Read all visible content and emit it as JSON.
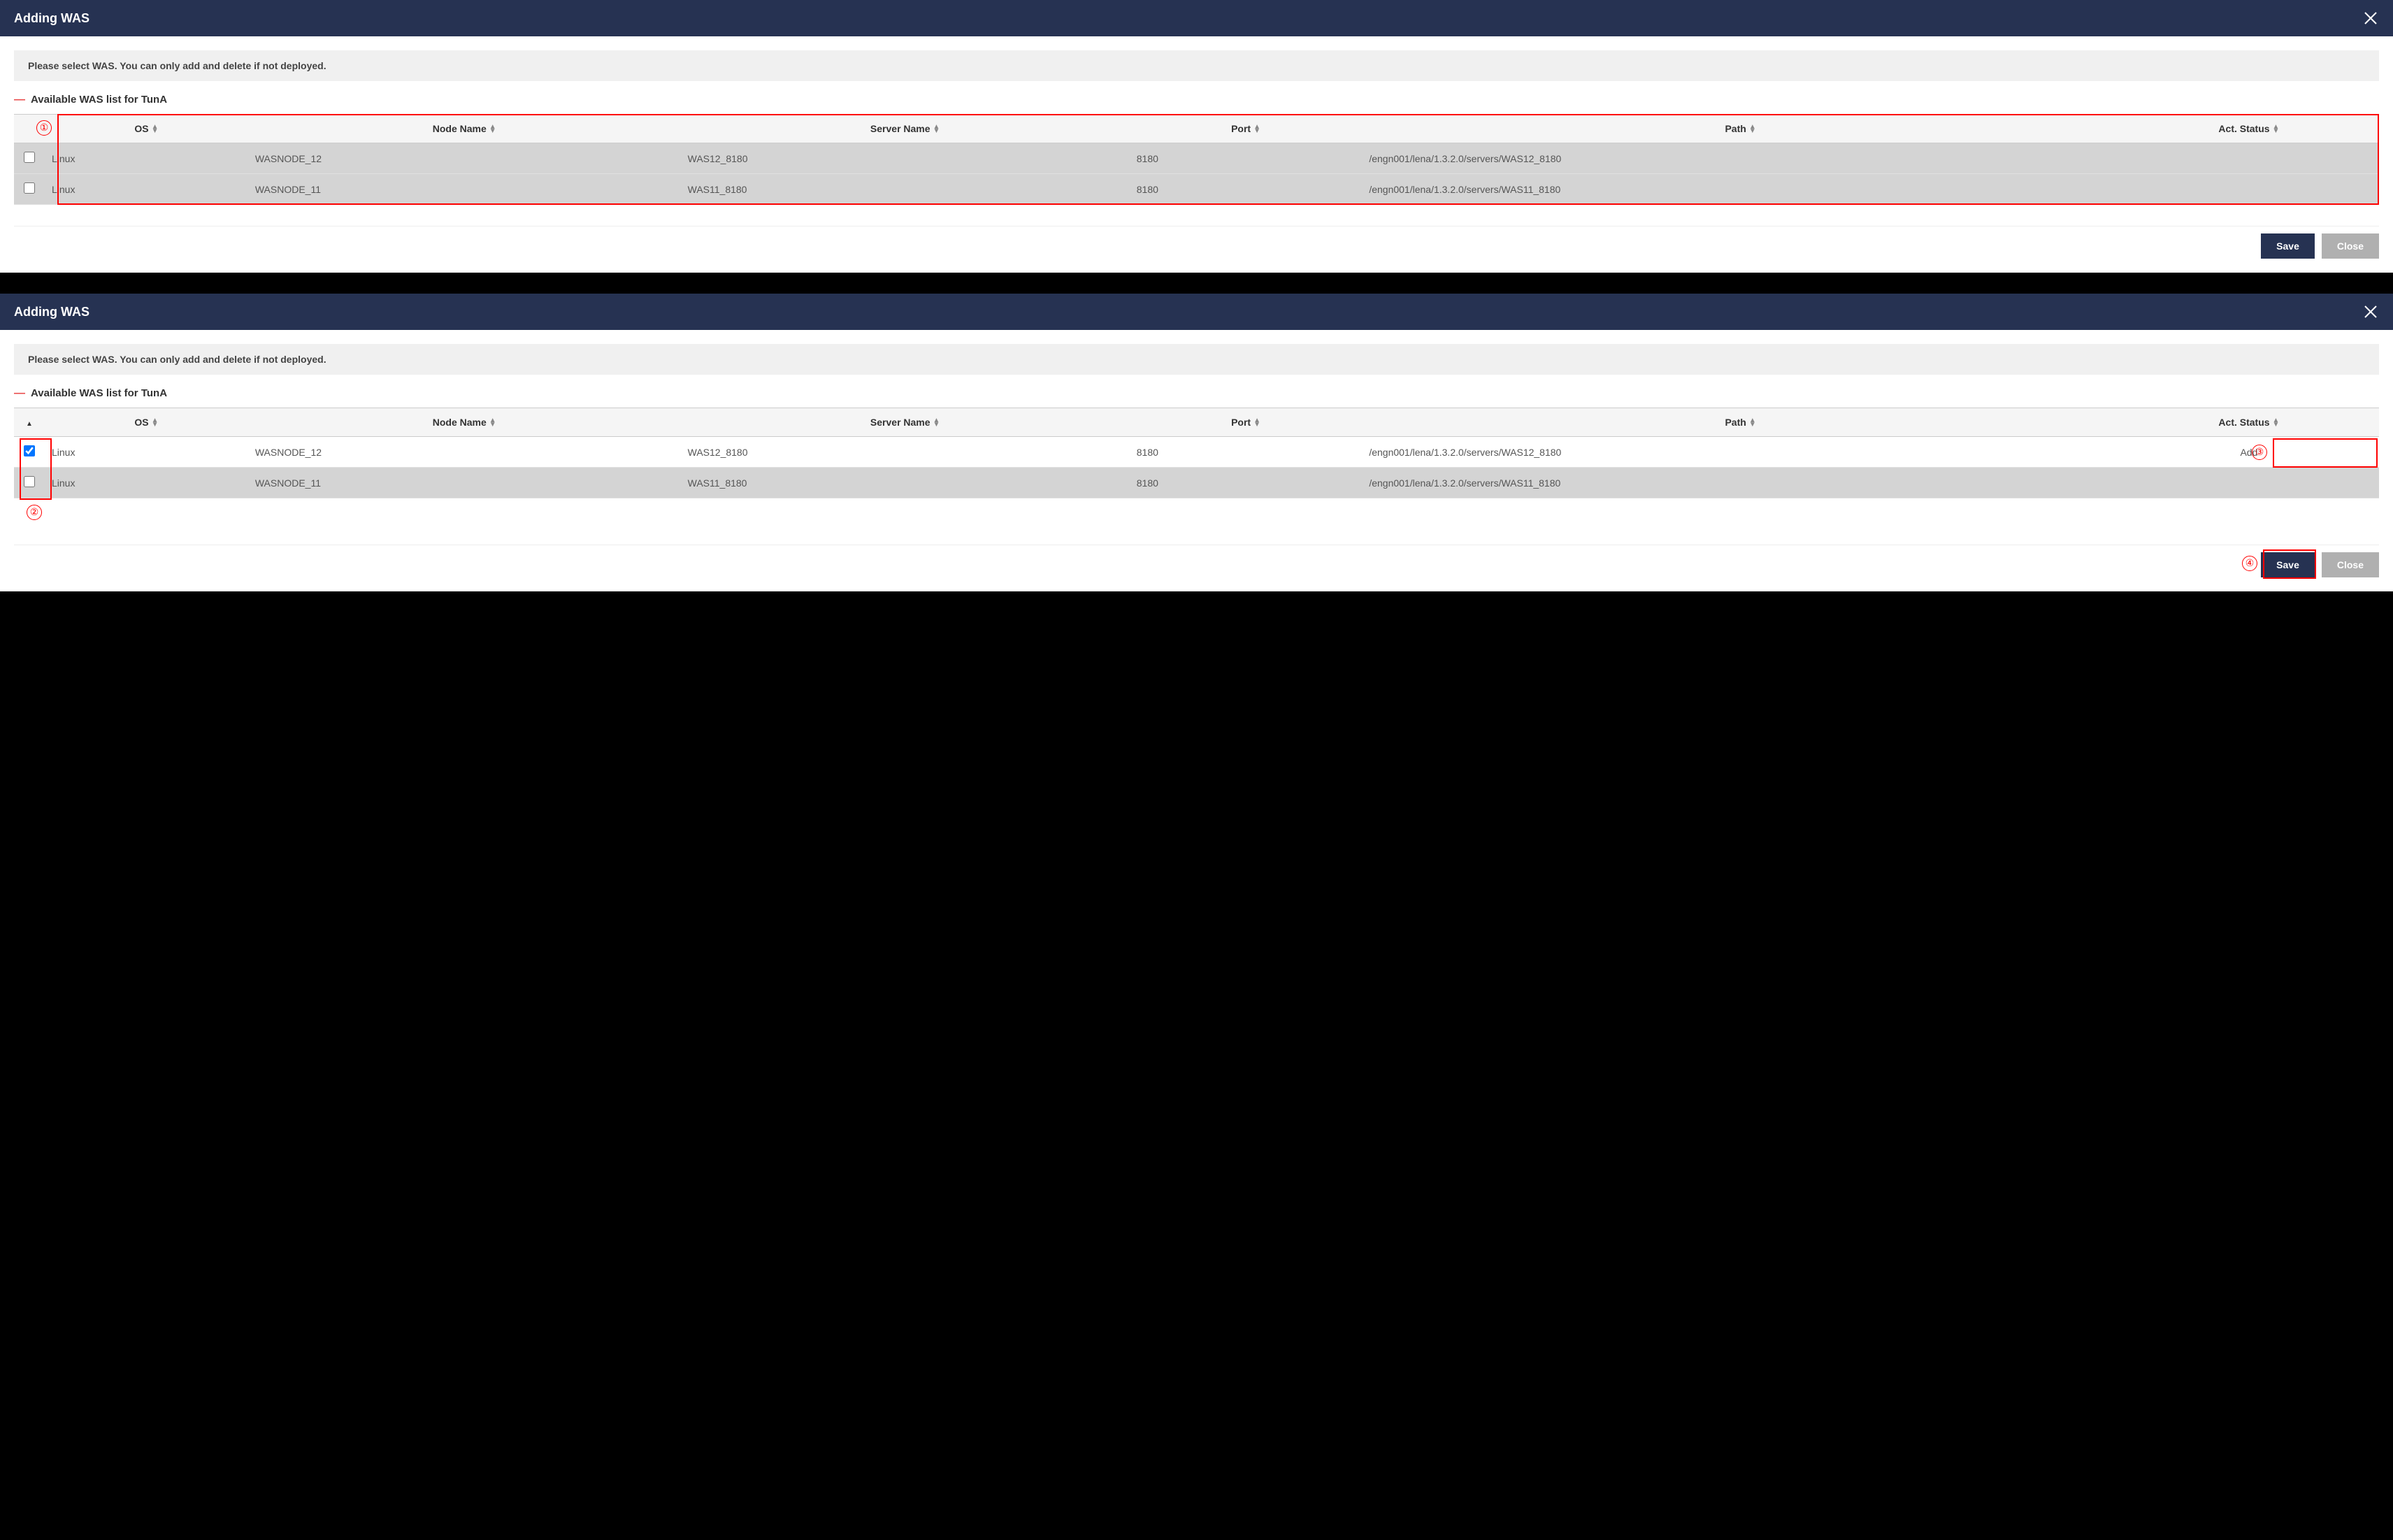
{
  "dialog1": {
    "title": "Adding WAS",
    "instruction": "Please select WAS. You can only add and delete if not deployed.",
    "section_label": "Available WAS list for TunA",
    "columns": {
      "os": "OS",
      "node": "Node Name",
      "server": "Server Name",
      "port": "Port",
      "path": "Path",
      "status": "Act. Status"
    },
    "rows": [
      {
        "checked": false,
        "shaded": true,
        "os": "Linux",
        "node": "WASNODE_12",
        "server": "WAS12_8180",
        "port": "8180",
        "path": "/engn001/lena/1.3.2.0/servers/WAS12_8180",
        "status": ""
      },
      {
        "checked": false,
        "shaded": true,
        "os": "Linux",
        "node": "WASNODE_11",
        "server": "WAS11_8180",
        "port": "8180",
        "path": "/engn001/lena/1.3.2.0/servers/WAS11_8180",
        "status": ""
      }
    ],
    "save_label": "Save",
    "close_label": "Close",
    "annotation_num": "①"
  },
  "dialog2": {
    "title": "Adding WAS",
    "instruction": "Please select WAS. You can only add and delete if not deployed.",
    "section_label": "Available WAS list for TunA",
    "columns": {
      "os": "OS",
      "node": "Node Name",
      "server": "Server Name",
      "port": "Port",
      "path": "Path",
      "status": "Act. Status"
    },
    "rows": [
      {
        "checked": true,
        "shaded": false,
        "os": "Linux",
        "node": "WASNODE_12",
        "server": "WAS12_8180",
        "port": "8180",
        "path": "/engn001/lena/1.3.2.0/servers/WAS12_8180",
        "status": "Add"
      },
      {
        "checked": false,
        "shaded": true,
        "os": "Linux",
        "node": "WASNODE_11",
        "server": "WAS11_8180",
        "port": "8180",
        "path": "/engn001/lena/1.3.2.0/servers/WAS11_8180",
        "status": ""
      }
    ],
    "save_label": "Save",
    "close_label": "Close",
    "annotation_nums": {
      "n2": "②",
      "n3": "③",
      "n4": "④"
    }
  },
  "colors": {
    "header_bg": "#263252",
    "annotation": "#ff0000",
    "row_shaded": "#d4d4d4",
    "row_white": "#ffffff",
    "instruction_bg": "#f0f0f0"
  }
}
